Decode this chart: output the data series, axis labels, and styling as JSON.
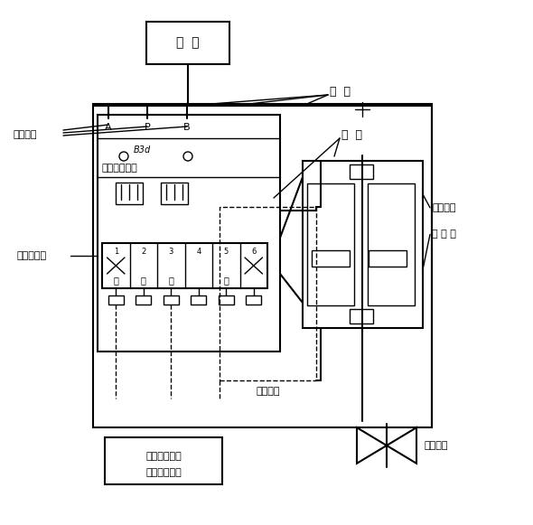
{
  "bg": "#ffffff",
  "lc": "#000000",
  "qi_yuan": "气  源",
  "qi_guan": "气  管",
  "qi_lan": "气  缆",
  "shou_kong": "手控按鈕",
  "dian_ci": "电磁气阀线圈",
  "bao_kong": "防爆控制笱",
  "bao_ruan": "防爆软管",
  "bao_fa_1": "防爆阀位",
  "bao_fa_2": "回 诉 器",
  "kong_zhi_1": "控制信号输出",
  "kong_zhi_2": "回诉信号输入",
  "qi_dong": "气动阀阀",
  "B3d": "B3d",
  "A_lbl": "A",
  "P_lbl": "P",
  "B_lbl": "B",
  "guan": "关",
  "kai": "开",
  "valve_nums": [
    "1",
    "2",
    "3",
    "4",
    "5",
    "6"
  ]
}
